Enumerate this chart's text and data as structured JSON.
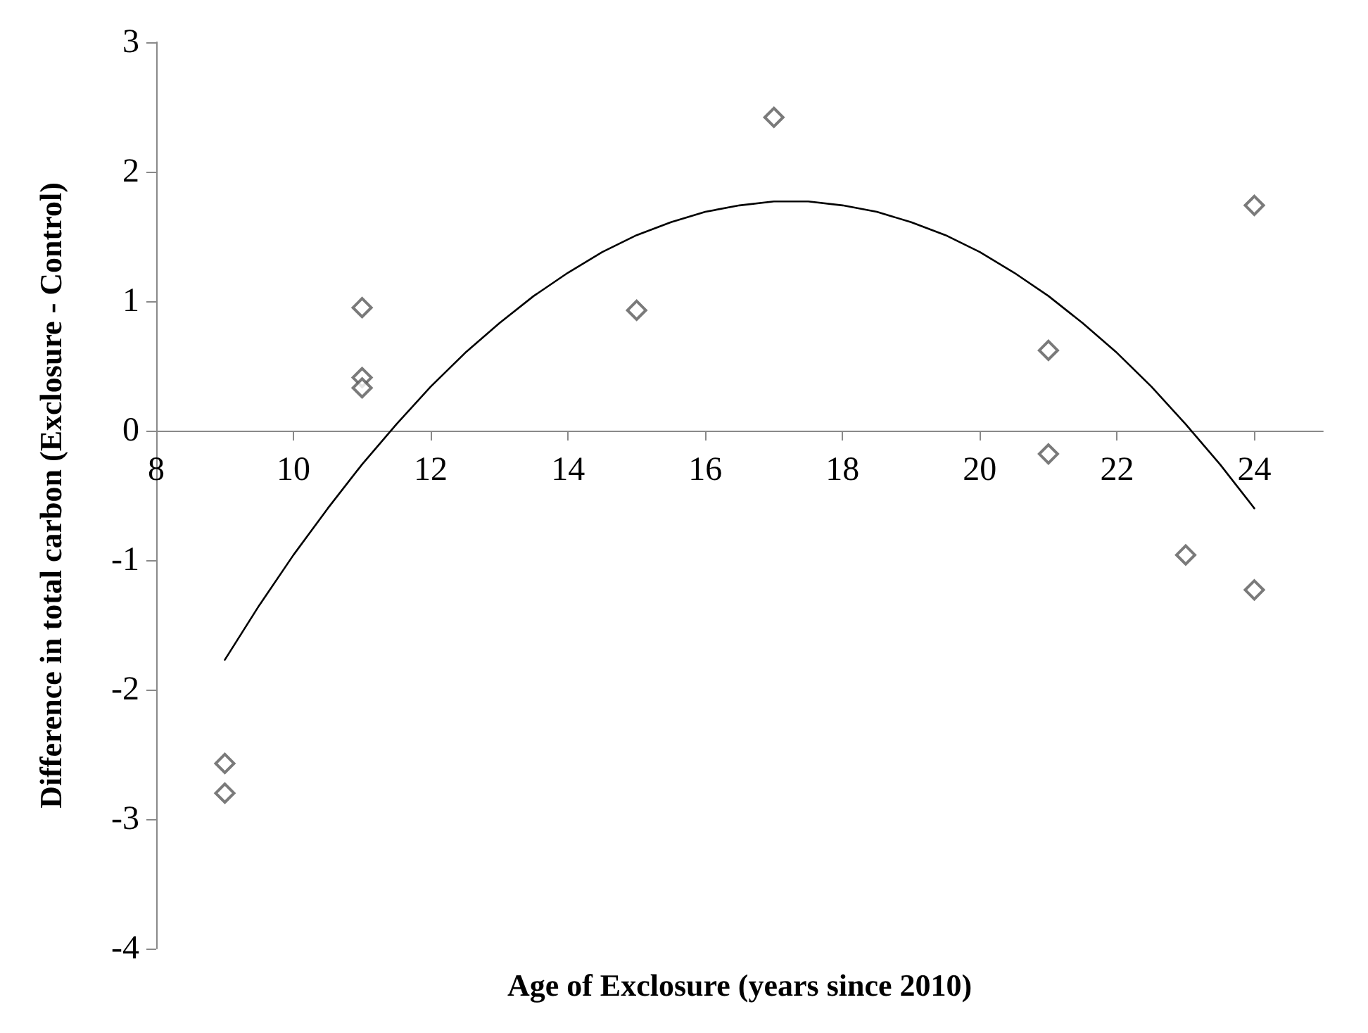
{
  "chart_data": {
    "type": "scatter",
    "xlabel": "Age of Exclosure (years since 2010)",
    "ylabel": "Difference in total carbon (Exclosure - Control)",
    "xlim": [
      8,
      25
    ],
    "xticks": [
      8,
      10,
      12,
      14,
      16,
      18,
      20,
      22,
      24
    ],
    "ylim": [
      -4,
      3
    ],
    "yticks": [
      -4,
      -3,
      -2,
      -1,
      0,
      1,
      2,
      3
    ],
    "marker": "diamond",
    "series": [
      {
        "color": "#595959",
        "x": [
          9,
          9,
          11,
          11,
          11,
          15,
          17,
          21,
          21,
          23,
          24,
          24
        ],
        "values": [
          -2.57,
          -2.8,
          0.95,
          0.41,
          0.33,
          0.93,
          2.42,
          0.62,
          -0.18,
          -0.96,
          1.74,
          -1.23
        ]
      },
      {
        "type": "line",
        "color": "#000000",
        "marker": "none",
        "line_style": "solid",
        "x": [
          9,
          9.5,
          10,
          10.5,
          11,
          11.5,
          12,
          12.5,
          13,
          13.5,
          14,
          14.5,
          15,
          15.5,
          16,
          16.5,
          17,
          17.5,
          18,
          18.5,
          19,
          19.5,
          20,
          20.5,
          21,
          21.5,
          22,
          22.5,
          23,
          23.5,
          24
        ],
        "values": [
          -1.77,
          -1.35,
          -0.96,
          -0.6,
          -0.26,
          0.05,
          0.34,
          0.6,
          0.83,
          1.04,
          1.22,
          1.38,
          1.51,
          1.61,
          1.69,
          1.74,
          1.77,
          1.77,
          1.74,
          1.69,
          1.61,
          1.51,
          1.38,
          1.22,
          1.04,
          0.83,
          0.6,
          0.34,
          0.05,
          -0.26,
          -0.6
        ]
      }
    ]
  }
}
